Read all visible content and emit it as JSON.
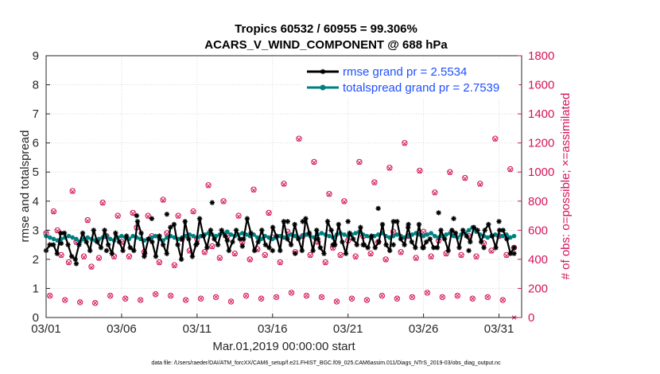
{
  "chart_data": {
    "type": "line",
    "title": "Tropics 60532 / 60955 = 99.306%",
    "subtitle": "ACARS_V_WIND_COMPONENT @ 688 hPa",
    "xlabel": "Mar.01,2019 00:00:00 start",
    "ylabel_left": "rmse and totalspread",
    "ylabel_right": "# of obs: o=possible; ×=assimilated",
    "xlim": [
      0,
      31.5
    ],
    "ylim_left": [
      0,
      9
    ],
    "ylim_right": [
      0,
      1800
    ],
    "xtick_values": [
      0,
      5,
      10,
      15,
      20,
      25,
      30
    ],
    "xtick_labels": [
      "03/01",
      "03/06",
      "03/11",
      "03/16",
      "03/21",
      "03/26",
      "03/31"
    ],
    "ytick_left": [
      "0",
      "1",
      "2",
      "3",
      "4",
      "5",
      "6",
      "7",
      "8",
      "9"
    ],
    "ytick_right": [
      "0",
      "200",
      "400",
      "600",
      "800",
      "1000",
      "1200",
      "1400",
      "1600",
      "1800"
    ],
    "colors": {
      "rmse": "#000000",
      "spread": "#008080",
      "obs": "#d4145a",
      "legend_text": "#1f4fff"
    },
    "legend": [
      {
        "name": "rmse",
        "label": "rmse grand pr = 2.5534"
      },
      {
        "name": "totalspread",
        "label": "totalspread grand pr = 2.7539"
      }
    ],
    "series": [
      {
        "name": "rmse",
        "axis": "left",
        "marker": "asterisk",
        "values": [
          2.3,
          2.5,
          2.5,
          2.2,
          2.9,
          2.9,
          2.5,
          2.1,
          2.0,
          2.5,
          2.9,
          2.6,
          2.3,
          3.0,
          2.6,
          2.4,
          3.0,
          2.5,
          2.2,
          2.9,
          2.6,
          2.3,
          2.8,
          2.4,
          2.3,
          3.3,
          2.9,
          2.2,
          2.7,
          2.6,
          2.1,
          2.8,
          2.5,
          2.2,
          3.1,
          3.2,
          2.5,
          2.0,
          3.3,
          2.7,
          2.1,
          2.5,
          3.4,
          2.8,
          2.4,
          3.0,
          2.7,
          2.5,
          3.0,
          2.8,
          2.3,
          2.6,
          3.0,
          2.7,
          2.7,
          3.4,
          2.9,
          2.3,
          2.6,
          3.0,
          2.5,
          2.4,
          3.1,
          2.8,
          2.3,
          3.3,
          2.7,
          2.5,
          3.2,
          2.7,
          2.3,
          3.4,
          2.9,
          2.3,
          3.0,
          2.4,
          2.2,
          3.3,
          3.0,
          2.5,
          3.2,
          2.6,
          2.2,
          2.9,
          2.7,
          2.5,
          3.1,
          2.5,
          2.4,
          2.8,
          2.4,
          2.6,
          3.2,
          2.5,
          2.3,
          3.3,
          3.3,
          2.7,
          2.5,
          3.1,
          2.6,
          2.4,
          3.2,
          2.4,
          2.6,
          2.7,
          2.4,
          2.4,
          3.0,
          2.7,
          2.3,
          3.0,
          2.9,
          2.4,
          3.0,
          2.8,
          2.6,
          3.1,
          3.0,
          2.6,
          3.0,
          3.2,
          2.8,
          2.4,
          3.0,
          3.0,
          2.7,
          2.2,
          2.4
        ],
        "points_note": "every fourth sample highlighted",
        "highlight": [
          [
            1.0,
            2.55
          ],
          [
            2.0,
            1.85
          ],
          [
            4.0,
            2.3
          ],
          [
            6.0,
            3.5
          ],
          [
            6.5,
            2.1
          ],
          [
            7.0,
            3.4
          ],
          [
            8.0,
            3.55
          ],
          [
            9.0,
            2.7
          ],
          [
            10.0,
            2.55
          ],
          [
            11.0,
            3.95
          ],
          [
            12.0,
            2.65
          ],
          [
            13.0,
            2.45
          ],
          [
            15.0,
            2.3
          ],
          [
            16.0,
            3.3
          ],
          [
            16.5,
            2.2
          ],
          [
            17.0,
            3.3
          ],
          [
            18.0,
            2.7
          ],
          [
            19.0,
            2.5
          ],
          [
            20.0,
            3.3
          ],
          [
            21.0,
            2.5
          ],
          [
            22.0,
            3.75
          ],
          [
            23.0,
            2.5
          ],
          [
            24.0,
            3.2
          ],
          [
            25.0,
            2.4
          ],
          [
            26.0,
            3.6
          ],
          [
            27.0,
            3.4
          ],
          [
            28.0,
            2.3
          ],
          [
            29.0,
            2.4
          ],
          [
            30.0,
            3.3
          ],
          [
            31.0,
            2.2
          ]
        ]
      },
      {
        "name": "totalspread",
        "axis": "left",
        "marker": "dot",
        "values": [
          2.8,
          2.75,
          2.7,
          2.65,
          2.7,
          2.75,
          2.8,
          2.75,
          2.7,
          2.6,
          2.7,
          2.75,
          2.7,
          2.65,
          2.7,
          2.75,
          2.8,
          2.7,
          2.65,
          2.75,
          2.8,
          2.75,
          2.7,
          2.8,
          2.75,
          2.7,
          2.65,
          2.7,
          2.75,
          2.8,
          2.7,
          2.65,
          2.75,
          2.8,
          2.75,
          2.7,
          2.75,
          2.8,
          2.85,
          2.8,
          2.75,
          2.8,
          2.85,
          2.9,
          2.85,
          2.8,
          2.85,
          2.9,
          2.95,
          2.85,
          2.8,
          2.85,
          2.9,
          2.85,
          2.8,
          2.85,
          2.75,
          2.7,
          2.8,
          2.75,
          2.7,
          2.75,
          2.8,
          2.75,
          2.8,
          2.85,
          2.8,
          2.75,
          2.8,
          2.85,
          2.8,
          2.75,
          2.85,
          2.9,
          2.85,
          2.8,
          2.75,
          2.85,
          2.9,
          2.85,
          2.8,
          2.85,
          2.9,
          2.95,
          2.85,
          2.8,
          2.75,
          2.8,
          2.85,
          2.9,
          2.8,
          2.75,
          2.8,
          2.85,
          2.8,
          2.75,
          2.8,
          2.85,
          2.9,
          2.85,
          2.8,
          2.85,
          2.9,
          2.8,
          2.75,
          2.8,
          2.85,
          2.9,
          2.8,
          2.75,
          2.85,
          2.9,
          3.0,
          3.1,
          2.95,
          2.85,
          2.8,
          2.75,
          2.8,
          2.85,
          2.8,
          2.8,
          2.85,
          2.75,
          2.8
        ]
      },
      {
        "name": "obs_possible",
        "axis": "right",
        "marker": "circle",
        "x": [
          0,
          0.25,
          0.5,
          0.75,
          1,
          1.25,
          1.5,
          1.75,
          2,
          2.25,
          2.5,
          2.75,
          3,
          3.25,
          3.5,
          3.75,
          4,
          4.25,
          4.5,
          4.75,
          5,
          5.25,
          5.5,
          5.75,
          6,
          6.25,
          6.5,
          6.75,
          7,
          7.25,
          7.5,
          7.75,
          8,
          8.25,
          8.5,
          8.75,
          9,
          9.25,
          9.5,
          9.75,
          10,
          10.25,
          10.5,
          10.75,
          11,
          11.25,
          11.5,
          11.75,
          12,
          12.25,
          12.5,
          12.75,
          13,
          13.25,
          13.5,
          13.75,
          14,
          14.25,
          14.5,
          14.75,
          15,
          15.25,
          15.5,
          15.75,
          16,
          16.25,
          16.5,
          16.75,
          17,
          17.25,
          17.5,
          17.75,
          18,
          18.25,
          18.5,
          18.75,
          19,
          19.25,
          19.5,
          19.75,
          20,
          20.25,
          20.5,
          20.75,
          21,
          21.25,
          21.5,
          21.75,
          22,
          22.25,
          22.5,
          22.75,
          23,
          23.25,
          23.5,
          23.75,
          24,
          24.25,
          24.5,
          24.75,
          25,
          25.25,
          25.5,
          25.75,
          26,
          26.25,
          26.5,
          26.75,
          27,
          27.25,
          27.5,
          27.75,
          28,
          28.25,
          28.5,
          28.75,
          29,
          29.25,
          29.5,
          29.75,
          30,
          30.25,
          30.5,
          30.75,
          31
        ],
        "values": [
          580,
          150,
          730,
          600,
          430,
          120,
          380,
          870,
          520,
          105,
          420,
          670,
          350,
          100,
          410,
          790,
          560,
          150,
          420,
          700,
          520,
          130,
          420,
          720,
          620,
          120,
          450,
          700,
          560,
          160,
          380,
          810,
          580,
          150,
          360,
          700,
          540,
          120,
          460,
          730,
          540,
          130,
          450,
          910,
          490,
          140,
          410,
          800,
          560,
          110,
          440,
          700,
          520,
          150,
          400,
          880,
          470,
          130,
          430,
          720,
          550,
          140,
          380,
          920,
          590,
          170,
          450,
          1230,
          560,
          150,
          430,
          1070,
          520,
          140,
          380,
          850,
          480,
          110,
          430,
          800,
          530,
          130,
          420,
          1070,
          560,
          120,
          440,
          930,
          520,
          150,
          400,
          1030,
          590,
          130,
          450,
          1200,
          560,
          140,
          410,
          1010,
          590,
          170,
          420,
          860,
          530,
          140,
          440,
          1000,
          570,
          150,
          430,
          960,
          560,
          130,
          420,
          920,
          510,
          140,
          460,
          1230,
          560,
          120,
          430,
          1020,
          480
        ]
      },
      {
        "name": "obs_assimilated",
        "axis": "right",
        "marker": "x",
        "x": [
          0,
          0.25,
          0.5,
          0.75,
          1,
          1.25,
          1.5,
          1.75,
          2,
          2.25,
          2.5,
          2.75,
          3,
          3.25,
          3.5,
          3.75,
          4,
          4.25,
          4.5,
          4.75,
          5,
          5.25,
          5.5,
          5.75,
          6,
          6.25,
          6.5,
          6.75,
          7,
          7.25,
          7.5,
          7.75,
          8,
          8.25,
          8.5,
          8.75,
          9,
          9.25,
          9.5,
          9.75,
          10,
          10.25,
          10.5,
          10.75,
          11,
          11.25,
          11.5,
          11.75,
          12,
          12.25,
          12.5,
          12.75,
          13,
          13.25,
          13.5,
          13.75,
          14,
          14.25,
          14.5,
          14.75,
          15,
          15.25,
          15.5,
          15.75,
          16,
          16.25,
          16.5,
          16.75,
          17,
          17.25,
          17.5,
          17.75,
          18,
          18.25,
          18.5,
          18.75,
          19,
          19.25,
          19.5,
          19.75,
          20,
          20.25,
          20.5,
          20.75,
          21,
          21.25,
          21.5,
          21.75,
          22,
          22.25,
          22.5,
          22.75,
          23,
          23.25,
          23.5,
          23.75,
          24,
          24.25,
          24.5,
          24.75,
          25,
          25.25,
          25.5,
          25.75,
          26,
          26.25,
          26.5,
          26.75,
          27,
          27.25,
          27.5,
          27.75,
          28,
          28.25,
          28.5,
          28.75,
          29,
          29.25,
          29.5,
          29.75,
          30,
          30.25,
          30.5,
          30.75,
          31
        ],
        "values": [
          575,
          150,
          725,
          595,
          425,
          120,
          375,
          865,
          515,
          105,
          415,
          665,
          345,
          100,
          405,
          785,
          555,
          150,
          415,
          695,
          515,
          130,
          415,
          715,
          615,
          120,
          445,
          695,
          555,
          160,
          375,
          805,
          575,
          150,
          355,
          695,
          535,
          120,
          455,
          725,
          535,
          130,
          445,
          905,
          485,
          140,
          405,
          795,
          555,
          110,
          435,
          695,
          515,
          150,
          395,
          875,
          465,
          130,
          425,
          715,
          545,
          140,
          375,
          915,
          585,
          170,
          445,
          1225,
          555,
          150,
          425,
          1065,
          515,
          140,
          375,
          845,
          475,
          110,
          425,
          795,
          525,
          130,
          415,
          1065,
          555,
          120,
          435,
          925,
          515,
          150,
          395,
          1025,
          585,
          130,
          445,
          1195,
          555,
          140,
          405,
          1005,
          585,
          170,
          415,
          855,
          525,
          140,
          435,
          995,
          565,
          150,
          425,
          955,
          555,
          130,
          415,
          915,
          505,
          140,
          455,
          1225,
          555,
          120,
          425,
          1015,
          0
        ]
      }
    ]
  },
  "footnote": "data file: /Users/raeder/DAI/ATM_forcXX/CAM6_setup/f.e21.FHIST_BGC.f09_025.CAM6assim.011/Diags_NTrS_2019-03/obs_diag_output.nc"
}
